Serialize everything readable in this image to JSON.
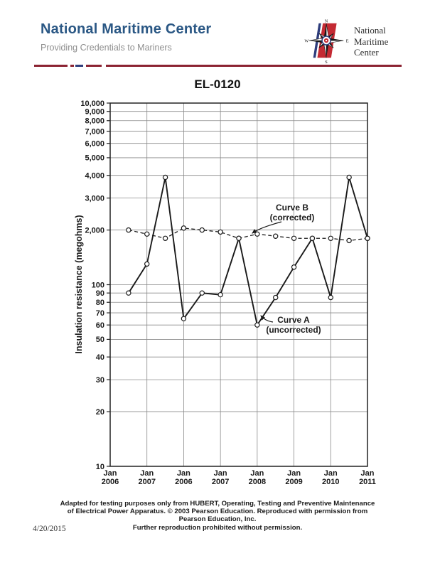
{
  "page": {
    "date": "4/20/2015"
  },
  "header": {
    "brand": "National Maritime Center",
    "tagline": "Providing Credentials to Mariners",
    "logo_text_lines": [
      "National",
      "Maritime",
      "Center"
    ],
    "compass_letters": {
      "n": "N",
      "s": "S",
      "e": "E",
      "w": "W"
    },
    "colors": {
      "brand_blue": "#2a5784",
      "tagline_gray": "#8e8e8e",
      "rule_maroon": "#8b2332",
      "rule_navy": "#2e3d7c",
      "logo_red": "#c42a33"
    }
  },
  "main": {
    "title": "EL-0120"
  },
  "chart_data": {
    "type": "line",
    "title": "EL-0120",
    "ylabel": "Insulation resistance (megohms)",
    "xlabel": "",
    "y_scale": "log, two cycles with break: upper cycle labeled 1,000-10,000, lower cycle 10-100",
    "ylim_printed": [
      10,
      10000
    ],
    "grid": true,
    "y_ticks": [
      "10,000",
      "9,000",
      "8,000",
      "7,000",
      "6,000",
      "5,000",
      "4,000",
      "3,000",
      "2,000",
      "100",
      "90",
      "80",
      "70",
      "60",
      "50",
      "40",
      "30",
      "20",
      "10"
    ],
    "x_ticks": [
      "Jan 2006",
      "Jan 2007",
      "Jan 2006",
      "Jan 2007",
      "Jan 2008",
      "Jan 2009",
      "Jan 2010",
      "Jan 2011"
    ],
    "points_note": "14 readings per curve at half-interval spacing starting midway after first gridline",
    "series": [
      {
        "name": "Curve A (uncorrected)",
        "style": "solid",
        "marker": "open-circle",
        "values": [
          90,
          130,
          3900,
          65,
          90,
          88,
          1800,
          60,
          85,
          125,
          1800,
          85,
          3900,
          1800
        ]
      },
      {
        "name": "Curve B (corrected)",
        "style": "dashed",
        "marker": "open-circle",
        "values": [
          2000,
          1900,
          1800,
          2050,
          2000,
          1950,
          1800,
          1900,
          1850,
          1800,
          1800,
          1800,
          1750,
          1800
        ]
      }
    ],
    "annotations": [
      {
        "lines": [
          "Curve B",
          "(corrected)"
        ],
        "points_to": "dashed corrected curve"
      },
      {
        "lines": [
          "Curve A",
          "(uncorrected)"
        ],
        "points_to": "solid uncorrected curve"
      }
    ]
  },
  "footer": {
    "lines": [
      "Adapted for testing purposes only from HUBERT, Operating, Testing and Preventive Maintenance",
      "of Electrical Power Apparatus. © 2003 Pearson Education. Reproduced with permission from",
      "Pearson Education, Inc.",
      "Further reproduction prohibited without permission."
    ]
  }
}
